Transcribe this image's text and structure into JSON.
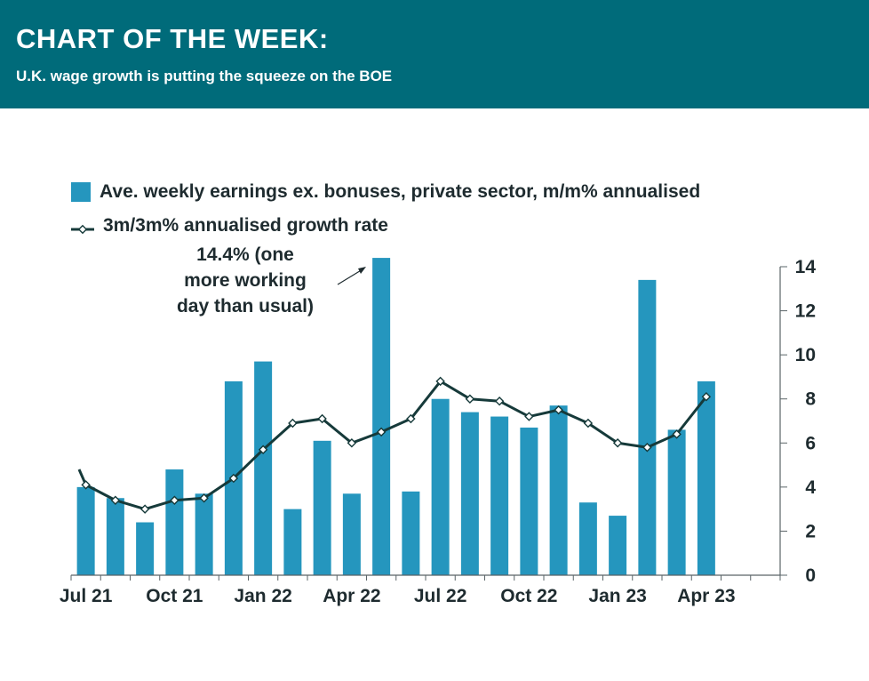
{
  "header": {
    "title": "CHART OF THE WEEK:",
    "subtitle": "U.K. wage growth is putting the squeeze on the BOE"
  },
  "annotation": {
    "lines": [
      "14.4% (one",
      "more working",
      "day than usual)"
    ]
  },
  "colors": {
    "header_bg": "#006b7a",
    "bar": "#2596be",
    "line": "#163a3a",
    "text": "#1e2b2f"
  },
  "chart_data": {
    "type": "bar",
    "x": [
      "Jul 21",
      "Aug 21",
      "Sep 21",
      "Oct 21",
      "Nov 21",
      "Dec 21",
      "Jan 22",
      "Feb 22",
      "Mar 22",
      "Apr 22",
      "May 22",
      "Jun 22",
      "Jul 22",
      "Aug 22",
      "Sep 22",
      "Oct 22",
      "Nov 22",
      "Dec 22",
      "Jan 23",
      "Feb 23",
      "Mar 23",
      "Apr 23",
      "May 23",
      "Jun 23"
    ],
    "tick_labels": [
      "Jul 21",
      "Oct 21",
      "Jan 22",
      "Apr 22",
      "Jul 22",
      "Oct 22",
      "Jan 23",
      "Apr 23"
    ],
    "series": [
      {
        "name": "Ave. weekly earnings ex. bonuses, private sector, m/m% annualised",
        "kind": "bar",
        "values": [
          4.0,
          3.5,
          2.4,
          4.8,
          3.7,
          8.8,
          9.7,
          3.0,
          6.1,
          3.7,
          14.4,
          3.8,
          8.0,
          7.4,
          7.2,
          6.7,
          7.7,
          3.3,
          2.7,
          13.4,
          6.6,
          8.8,
          null,
          null
        ]
      },
      {
        "name": "3m/3m% annualised growth rate",
        "kind": "line",
        "start_value": 4.8,
        "values": [
          4.1,
          3.4,
          3.0,
          3.4,
          3.5,
          4.4,
          5.7,
          6.9,
          7.1,
          6.0,
          6.5,
          7.1,
          8.8,
          8.0,
          7.9,
          7.2,
          7.5,
          6.9,
          6.0,
          5.8,
          6.4,
          8.1,
          null,
          null
        ]
      }
    ],
    "y_axis": {
      "position": "right",
      "ylim": [
        0,
        14
      ],
      "ticks": [
        0,
        2,
        4,
        6,
        8,
        10,
        12,
        14
      ]
    },
    "legend": "top-left",
    "grid": false
  }
}
